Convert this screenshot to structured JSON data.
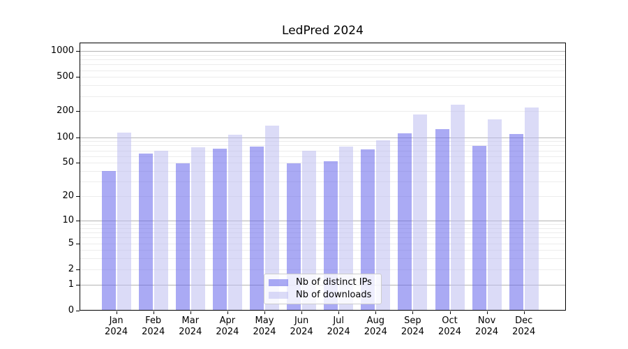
{
  "chart_data": {
    "type": "bar",
    "title": "LedPred 2024",
    "categories": [
      "Jan",
      "Feb",
      "Mar",
      "Apr",
      "May",
      "Jun",
      "Jul",
      "Aug",
      "Sep",
      "Oct",
      "Nov",
      "Dec"
    ],
    "x_year_label": "2024",
    "series": [
      {
        "name": "Nb of distinct IPs",
        "color": "#a8a8f0",
        "fill": "rgba(100,100,235,0.55)",
        "values": [
          40,
          64,
          49,
          74,
          78,
          49,
          52,
          72,
          110,
          125,
          79,
          108
        ]
      },
      {
        "name": "Nb of downloads",
        "color": "#dcdcf8",
        "fill": "rgba(190,190,240,0.55)",
        "values": [
          113,
          69,
          76,
          106,
          137,
          70,
          77,
          92,
          185,
          238,
          160,
          220
        ]
      }
    ],
    "yscale": "log10(v+1)",
    "yticks": [
      0,
      1,
      2,
      5,
      10,
      20,
      50,
      100,
      200,
      500,
      1000
    ],
    "ylim": [
      0,
      1250
    ],
    "grid": {
      "major_ticks": [
        1,
        10,
        100,
        1000
      ],
      "major_color": "#b3b3b3",
      "minor_color": "#ececec"
    },
    "legend_position": "lower-center-inside",
    "xlabel": "",
    "ylabel": ""
  }
}
